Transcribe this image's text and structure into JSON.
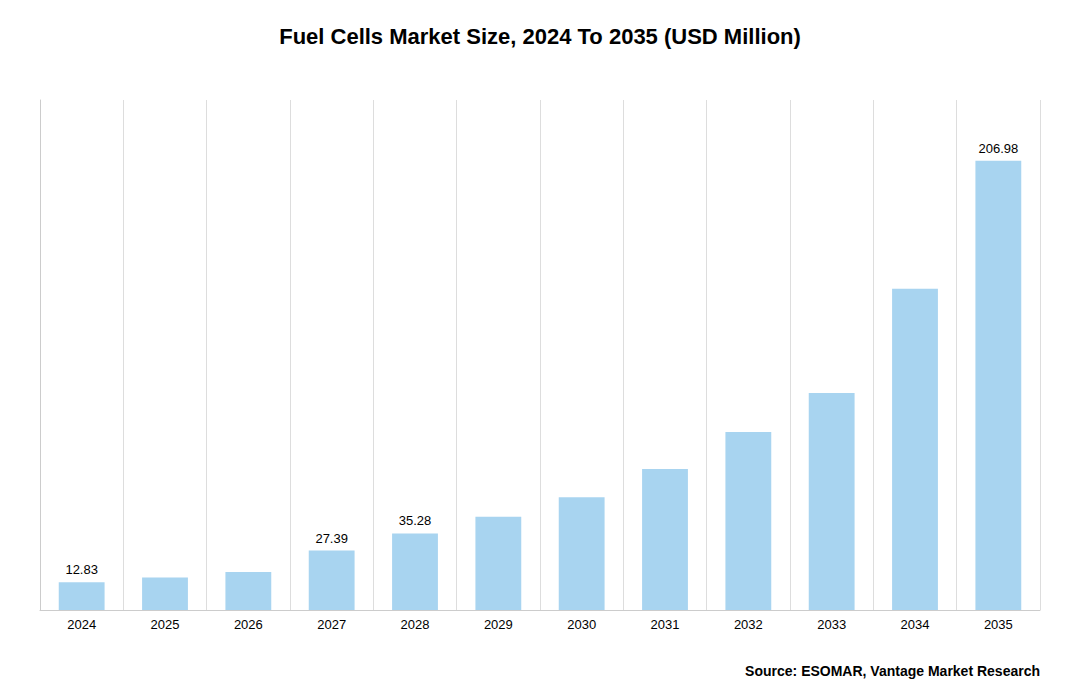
{
  "chart_data": {
    "type": "bar",
    "title": "Fuel Cells Market Size, 2024 To 2035 (USD Million)",
    "categories": [
      "2024",
      "2025",
      "2026",
      "2027",
      "2028",
      "2029",
      "2030",
      "2031",
      "2032",
      "2033",
      "2034",
      "2035"
    ],
    "values": [
      12.83,
      15.0,
      17.5,
      27.39,
      35.28,
      43.0,
      52.0,
      65.0,
      82.0,
      100.0,
      148.0,
      206.98
    ],
    "value_labels": [
      "12.83",
      null,
      null,
      "27.39",
      "35.28",
      null,
      null,
      null,
      null,
      null,
      null,
      "206.98"
    ],
    "color": "#a8d4f0",
    "ylim": [
      0,
      235
    ],
    "grid": true,
    "tick_labels": "x",
    "annotation": "Source: ESOMAR, Vantage Market Research"
  }
}
